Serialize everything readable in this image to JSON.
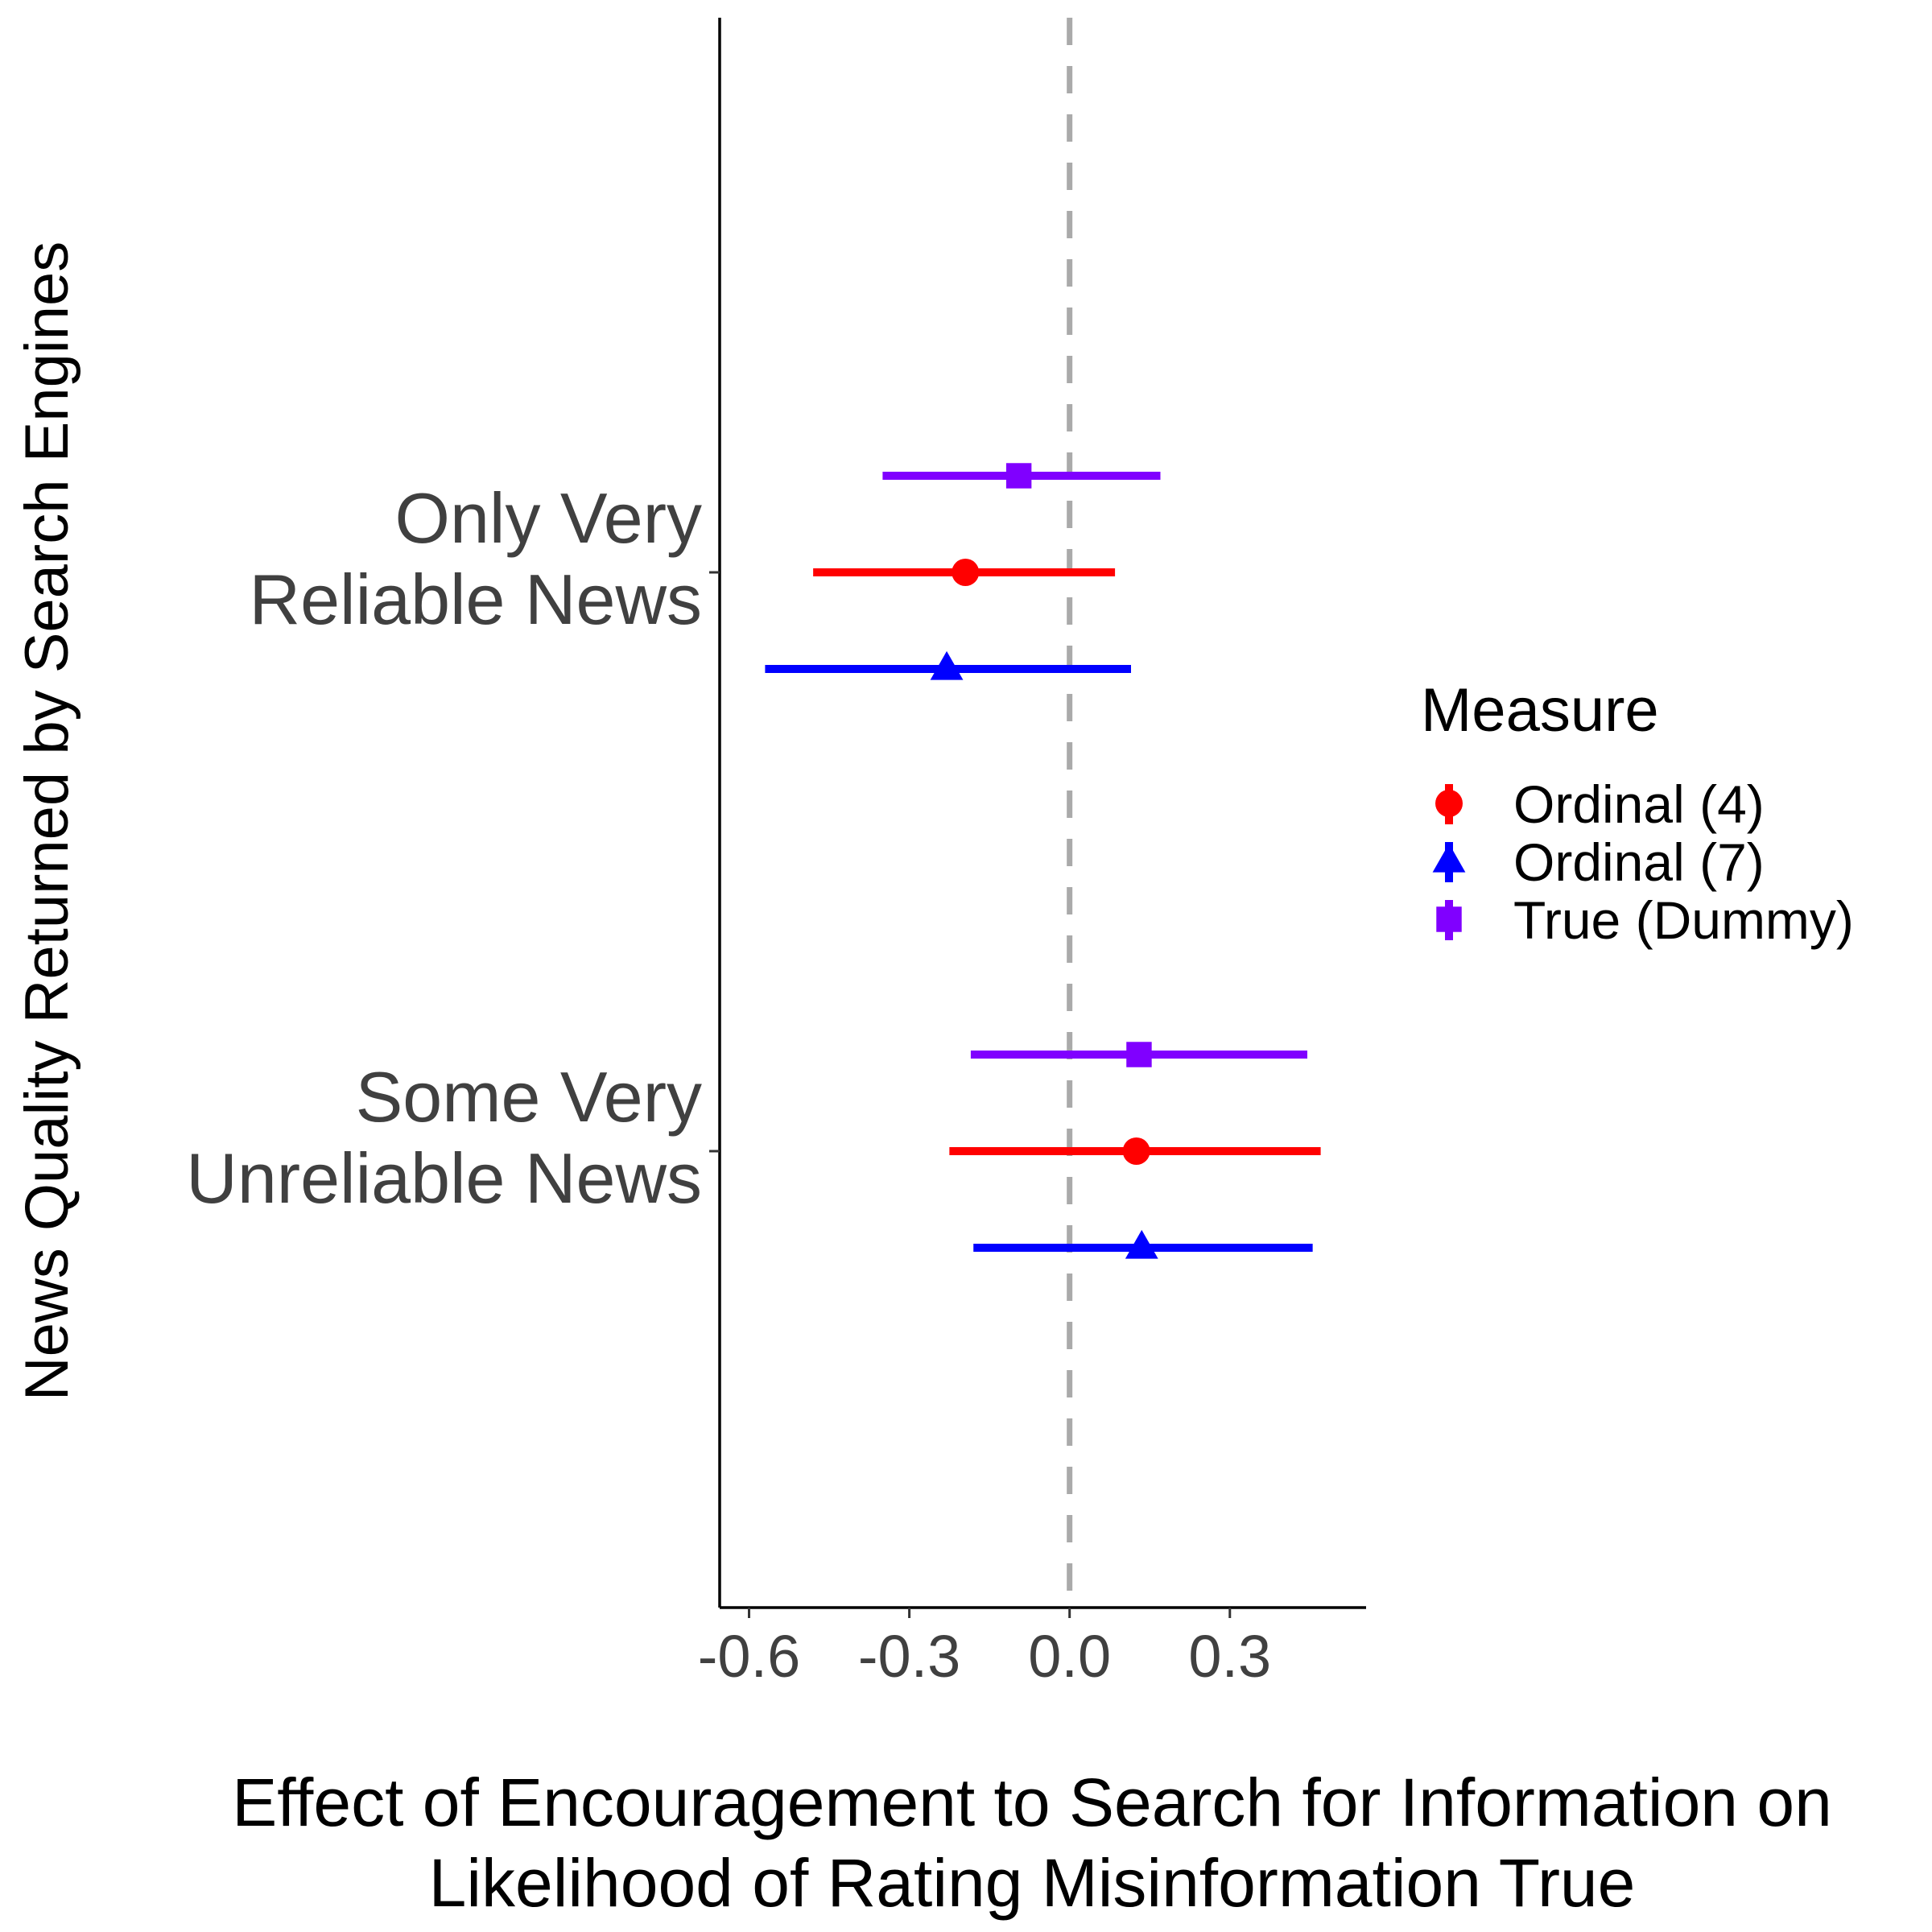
{
  "chart_data": {
    "type": "scatter",
    "subtype": "coefficient-plot-horizontal-error-bars",
    "xlabel_lines": [
      "Effect of Encouragement to Search for Information on",
      "Likelihood of Rating Misinformation True"
    ],
    "ylabel": "News Quality Returned by Search Engines",
    "categories": [
      {
        "key": "only",
        "lines": [
          "Only Very",
          "Reliable News"
        ]
      },
      {
        "key": "some",
        "lines": [
          "Some Very",
          "Unreliable News"
        ]
      }
    ],
    "x_ticks": [
      {
        "value": -0.6,
        "label": "-0.6"
      },
      {
        "value": -0.3,
        "label": "-0.3"
      },
      {
        "value": 0.0,
        "label": "0.0"
      },
      {
        "value": 0.3,
        "label": "0.3"
      }
    ],
    "xlim": [
      -0.655,
      0.555
    ],
    "reference_line": {
      "x": 0.0,
      "style": "dashed",
      "color": "#aaaaaa"
    },
    "grid": false,
    "legend": {
      "title": "Measure",
      "position": "right"
    },
    "series": [
      {
        "name": "Ordinal (4)",
        "color": "#ff0000",
        "shape": "circle",
        "points": [
          {
            "category": "only",
            "estimate": -0.195,
            "lower": -0.48,
            "upper": 0.085
          },
          {
            "category": "some",
            "estimate": 0.125,
            "lower": -0.225,
            "upper": 0.47
          }
        ]
      },
      {
        "name": "Ordinal (7)",
        "color": "#0000ff",
        "shape": "triangle",
        "points": [
          {
            "category": "only",
            "estimate": -0.23,
            "lower": -0.57,
            "upper": 0.115
          },
          {
            "category": "some",
            "estimate": 0.135,
            "lower": -0.18,
            "upper": 0.455
          }
        ]
      },
      {
        "name": "True (Dummy)",
        "color": "#8000ff",
        "shape": "square",
        "points": [
          {
            "category": "only",
            "estimate": -0.095,
            "lower": -0.35,
            "upper": 0.17
          },
          {
            "category": "some",
            "estimate": 0.13,
            "lower": -0.185,
            "upper": 0.445
          }
        ]
      }
    ]
  }
}
